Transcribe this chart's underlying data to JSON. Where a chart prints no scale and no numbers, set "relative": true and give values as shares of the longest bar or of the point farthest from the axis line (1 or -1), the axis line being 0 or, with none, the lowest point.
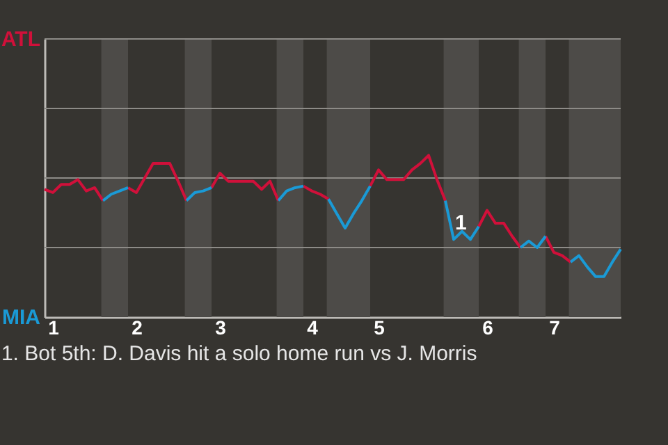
{
  "chart_data": {
    "type": "line",
    "relative": true,
    "categories": [
      null,
      "1",
      null,
      null,
      null,
      null,
      null,
      null,
      null,
      null,
      null,
      "2",
      null,
      null,
      null,
      null,
      null,
      null,
      null,
      null,
      null,
      "3",
      null,
      null,
      null,
      null,
      null,
      null,
      null,
      null,
      null,
      null,
      "4",
      null,
      null,
      null,
      null,
      null,
      null,
      null,
      "5",
      null,
      null,
      null,
      null,
      null,
      null,
      null,
      null,
      null,
      null,
      null,
      null,
      "6",
      null,
      null,
      null,
      null,
      null,
      null,
      null,
      "7",
      null,
      null,
      null,
      null,
      null,
      null,
      null,
      null
    ],
    "series": [
      {
        "color": "#d0103a",
        "values": [
          0.79,
          0.77,
          0.82,
          0.82,
          0.85,
          0.78,
          0.8,
          0.72,
          null,
          null,
          0.8,
          0.77,
          0.86,
          0.95,
          0.95,
          0.95,
          0.84,
          0.72,
          null,
          null,
          0.8,
          0.89,
          0.84,
          0.84,
          0.84,
          0.84,
          0.79,
          0.84,
          0.72,
          null,
          null,
          0.81,
          0.78,
          0.76,
          0.73,
          null,
          null,
          null,
          null,
          0.81,
          0.91,
          0.85,
          0.85,
          0.85,
          0.91,
          0.95,
          1,
          0.85,
          0.72,
          null,
          null,
          null,
          0.56,
          0.66,
          0.58,
          0.58,
          0.5,
          0.43,
          null,
          null,
          0.5,
          0.4,
          0.38,
          0.34,
          null,
          null,
          null,
          null,
          null,
          null
        ]
      },
      {
        "color": "#1a9ad6",
        "values": [
          null,
          null,
          null,
          null,
          null,
          null,
          null,
          0.72,
          0.76,
          0.78,
          0.8,
          null,
          null,
          null,
          null,
          null,
          null,
          0.72,
          0.77,
          0.78,
          0.8,
          null,
          null,
          null,
          null,
          null,
          null,
          null,
          0.72,
          0.78,
          0.8,
          0.81,
          null,
          null,
          0.73,
          0.64,
          0.55,
          0.64,
          0.72,
          0.81,
          null,
          null,
          null,
          null,
          null,
          null,
          null,
          null,
          0.72,
          0.48,
          0.53,
          0.48,
          0.56,
          null,
          null,
          null,
          null,
          0.43,
          0.47,
          0.43,
          0.5,
          null,
          null,
          0.34,
          0.38,
          0.31,
          0.25,
          0.25,
          0.34,
          0.42
        ]
      }
    ],
    "ref_lines": [
      {
        "axis": "y",
        "value": 0.43,
        "color": "#8d8b87"
      },
      {
        "axis": "y",
        "value": 0.86,
        "color": "#8d8b87"
      },
      {
        "axis": "y",
        "value": 1.29,
        "color": "#8d8b87"
      },
      {
        "axis": "y",
        "value": 1.72,
        "color": "#8d8b87"
      }
    ],
    "annotations": [
      "ATL",
      "MIA",
      {
        "text": "1",
        "y": 0.48
      },
      "1. Bot 5th: D. Davis hit a solo home run vs J. Morris"
    ]
  }
}
